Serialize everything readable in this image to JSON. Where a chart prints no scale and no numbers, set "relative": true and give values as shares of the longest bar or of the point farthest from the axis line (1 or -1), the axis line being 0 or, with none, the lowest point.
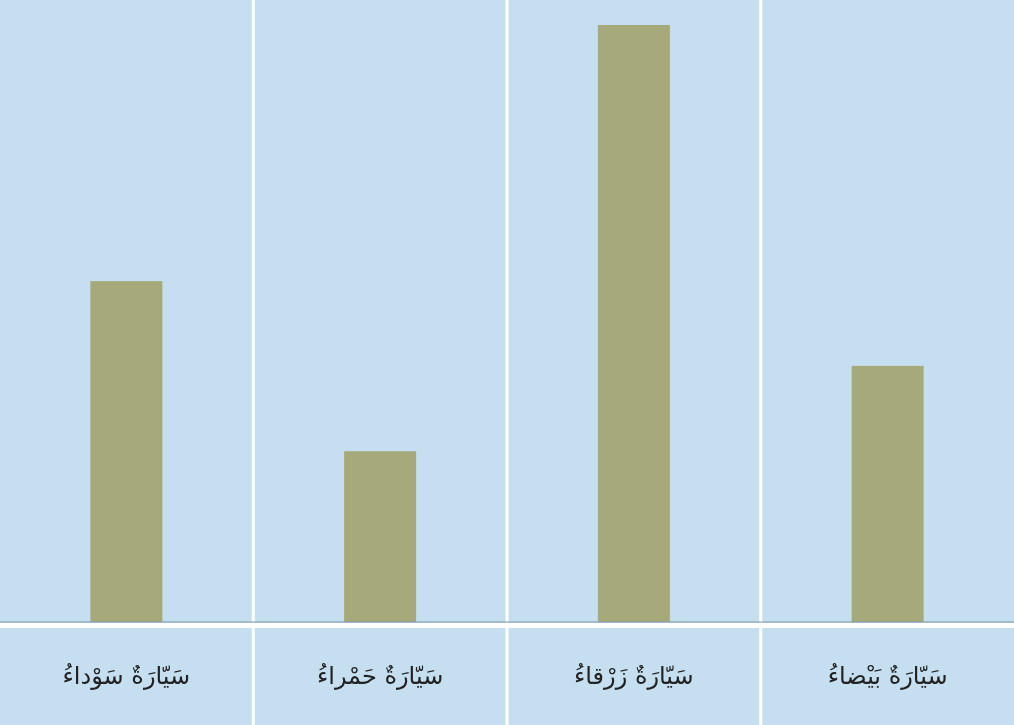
{
  "chart_data": {
    "type": "bar",
    "relative": true,
    "categories": [
      "سَيّارَةٌ سَوْداءُ",
      "سَيّارَةٌ حَمْراءُ",
      "سَيّارَةٌ زَرْقاءُ",
      "سَيّارَةٌ بَيْضاءُ"
    ],
    "values": [
      0.571,
      0.286,
      1,
      0.429
    ],
    "color": "#a6a97a"
  }
}
